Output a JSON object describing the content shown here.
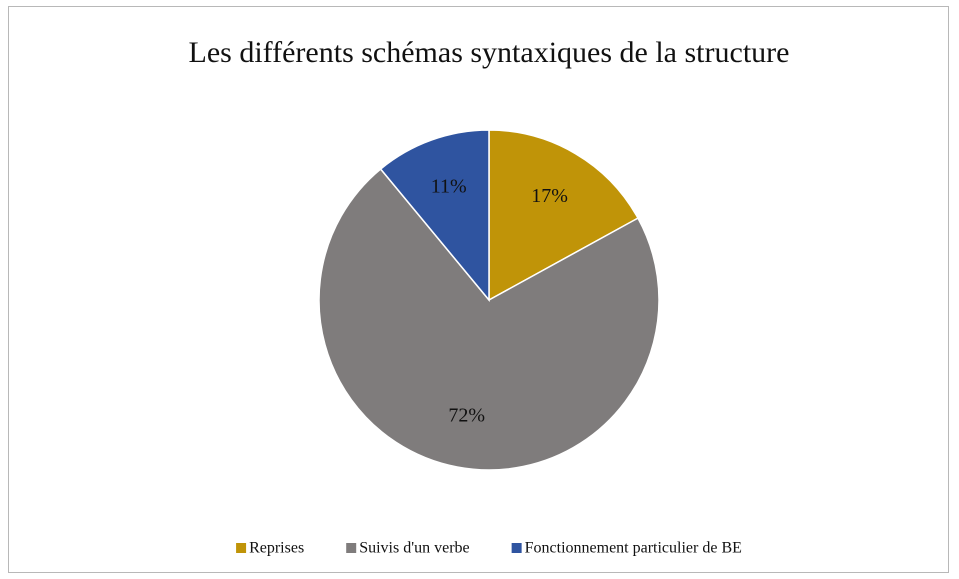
{
  "chart_data": {
    "type": "pie",
    "title": "Les différents schémas syntaxiques de la structure",
    "categories": [
      "Reprises",
      "Suivis d'un verbe",
      "Fonctionnement particulier de BE"
    ],
    "values": [
      17,
      72,
      11
    ],
    "value_labels": [
      "17%",
      "72%",
      "11%"
    ],
    "colors": [
      "#c09408",
      "#7f7c7c",
      "#2f54a0"
    ],
    "legend": "bottom"
  }
}
